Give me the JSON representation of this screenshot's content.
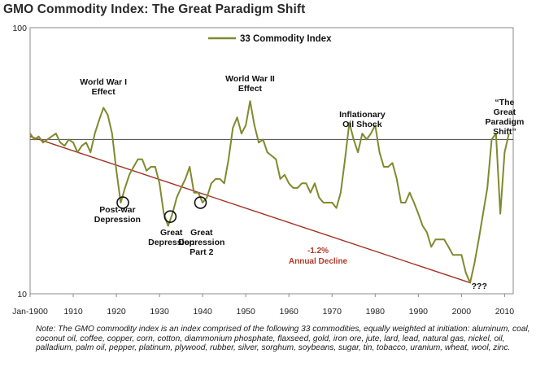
{
  "title": "GMO Commodity Index:  The Great Paradigm Shift",
  "note": "Note: The GMO commodity index is an index comprised of the following 33 commodities, equally weighted at initiation:  aluminum, coal, coconut oil, coffee, copper, corn, cotton, diammonium phosphate, flaxseed, gold, iron ore, jute, lard, lead, natural gas, nickel, oil, palladium, palm oil, pepper, platinum, plywood, rubber, silver, sorghum, soybeans, sugar, tin, tobacco, uranium, wheat, wool, zinc.",
  "colors": {
    "series": "#7f8a2e",
    "trend": "#a03425",
    "ref_line": "#444444"
  },
  "chart_data": {
    "type": "line",
    "title": "GMO Commodity Index:  The Great Paradigm Shift",
    "yscale": "log",
    "ylim": [
      10,
      100
    ],
    "xlim": [
      1900,
      2012
    ],
    "y_tick_labels": [
      "100",
      "10"
    ],
    "x_tick_labels": [
      "Jan-1900",
      "1910",
      "1920",
      "1930",
      "1940",
      "1950",
      "1960",
      "1970",
      "1980",
      "1990",
      "2000",
      "2010"
    ],
    "x_ticks": [
      1900,
      1910,
      1920,
      1930,
      1940,
      1950,
      1960,
      1970,
      1980,
      1990,
      2000,
      2010
    ],
    "legend": "top-center",
    "series": [
      {
        "name": "33 Commodity Index",
        "x": [
          1900,
          1901,
          1902,
          1903,
          1904,
          1905,
          1906,
          1907,
          1908,
          1909,
          1910,
          1911,
          1912,
          1913,
          1914,
          1915,
          1916,
          1917,
          1918,
          1919,
          1920,
          1921,
          1922,
          1923,
          1924,
          1925,
          1926,
          1927,
          1928,
          1929,
          1930,
          1931,
          1932,
          1933,
          1934,
          1935,
          1936,
          1937,
          1938,
          1939,
          1940,
          1941,
          1942,
          1943,
          1944,
          1945,
          1946,
          1947,
          1948,
          1949,
          1950,
          1951,
          1952,
          1953,
          1954,
          1955,
          1956,
          1957,
          1958,
          1959,
          1960,
          1961,
          1962,
          1963,
          1964,
          1965,
          1966,
          1967,
          1968,
          1969,
          1970,
          1971,
          1972,
          1973,
          1974,
          1975,
          1976,
          1977,
          1978,
          1979,
          1980,
          1981,
          1982,
          1983,
          1984,
          1985,
          1986,
          1987,
          1988,
          1989,
          1990,
          1991,
          1992,
          1993,
          1994,
          1995,
          1996,
          1997,
          1998,
          1999,
          2000,
          2001,
          2002,
          2003,
          2004,
          2005,
          2006,
          2007,
          2008,
          2009,
          2010,
          2011
        ],
        "values": [
          40,
          38,
          39,
          37,
          38,
          39,
          40,
          37,
          36,
          38,
          37,
          34,
          36,
          37,
          34,
          40,
          45,
          50,
          47,
          40,
          29,
          22,
          25,
          28,
          30,
          32,
          32,
          29,
          30,
          30,
          26,
          20,
          18,
          20,
          23,
          25,
          27,
          30,
          24,
          24,
          22,
          23,
          26,
          27,
          27,
          26,
          32,
          42,
          46,
          40,
          43,
          53,
          43,
          37,
          38,
          34,
          33,
          32,
          27,
          28,
          26,
          25,
          25,
          26,
          26,
          24,
          26,
          23,
          22,
          22,
          22,
          21,
          24,
          32,
          44,
          38,
          34,
          40,
          38,
          40,
          43,
          34,
          30,
          30,
          31,
          27,
          22,
          22,
          24,
          22,
          20,
          18,
          17,
          15,
          16,
          16,
          16,
          15,
          14,
          14,
          14,
          12,
          11,
          13,
          16,
          20,
          25,
          38,
          40,
          20,
          34,
          40
        ]
      }
    ],
    "reference_line_value": 38,
    "trend": {
      "label": "-1.2%",
      "sublabel": "Annual Decline",
      "x": [
        1900,
        2002
      ],
      "values": [
        39,
        11
      ]
    },
    "annotations": [
      {
        "lines": [
          "World War I",
          "Effect"
        ],
        "x": 1917
      },
      {
        "lines": [
          "World War II",
          "Effect"
        ],
        "x": 1951
      },
      {
        "lines": [
          "Inflationary",
          "Oil Shock"
        ],
        "x": 1977
      },
      {
        "lines": [
          "“The",
          "Great",
          "Paradigm",
          "Shift”"
        ],
        "x": 2010
      },
      {
        "lines": [
          "Post-war",
          "Depression"
        ],
        "x": 1921
      },
      {
        "lines": [
          "Great",
          "Depression"
        ],
        "x": 1932
      },
      {
        "lines": [
          "Great",
          "Depression",
          "Part 2"
        ],
        "x": 1939
      },
      {
        "lines": [
          "???"
        ],
        "x": 2003
      }
    ],
    "circled_troughs": [
      {
        "x": 1921.5,
        "value": 22
      },
      {
        "x": 1932.5,
        "value": 19.5
      },
      {
        "x": 1939.5,
        "value": 22
      }
    ]
  }
}
